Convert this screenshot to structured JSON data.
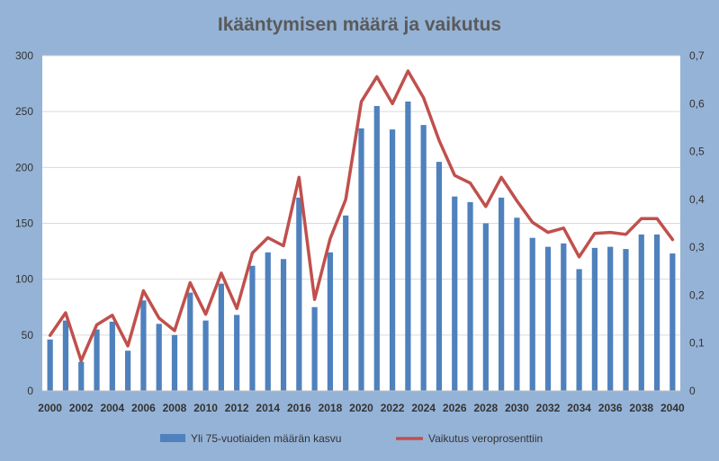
{
  "chart_data": {
    "type": "bar",
    "title": "Ikääntymisen määrä ja vaikutus",
    "xlabel": "",
    "ylabel": "",
    "x": [
      2000,
      2001,
      2002,
      2003,
      2004,
      2005,
      2006,
      2007,
      2008,
      2009,
      2010,
      2011,
      2012,
      2013,
      2014,
      2015,
      2016,
      2017,
      2018,
      2019,
      2020,
      2021,
      2022,
      2023,
      2024,
      2025,
      2026,
      2027,
      2028,
      2029,
      2030,
      2031,
      2032,
      2033,
      2034,
      2035,
      2036,
      2037,
      2038,
      2039,
      2040
    ],
    "x_tick_labels": [
      "2000",
      "2002",
      "2004",
      "2006",
      "2008",
      "2010",
      "2012",
      "2014",
      "2016",
      "2018",
      "2020",
      "2022",
      "2024",
      "2026",
      "2028",
      "2030",
      "2032",
      "2034",
      "2036",
      "2038",
      "2040"
    ],
    "ylim_left": [
      0,
      300
    ],
    "left_ticks": [
      "0",
      "50",
      "100",
      "150",
      "200",
      "250",
      "300"
    ],
    "ylim_right": [
      0,
      0.7
    ],
    "right_ticks": [
      "0",
      "0,1",
      "0,2",
      "0,3",
      "0,4",
      "0,5",
      "0,6",
      "0,7"
    ],
    "grid": true,
    "legend_position": "bottom",
    "series": [
      {
        "name": "Yli 75-vuotiaiden määrän kasvu",
        "kind": "bar",
        "axis": "left",
        "color": "#4F81BD",
        "values": [
          46,
          63,
          26,
          55,
          62,
          36,
          81,
          60,
          50,
          88,
          63,
          96,
          68,
          112,
          124,
          118,
          173,
          75,
          124,
          157,
          235,
          255,
          234,
          259,
          238,
          205,
          174,
          169,
          150,
          173,
          155,
          137,
          129,
          132,
          109,
          128,
          129,
          127,
          140,
          140,
          123
        ]
      },
      {
        "name": "Vaikutus veroprosenttiin",
        "kind": "line",
        "axis": "right",
        "color": "#C0504D",
        "values": [
          0.116,
          0.163,
          0.063,
          0.138,
          0.158,
          0.094,
          0.209,
          0.152,
          0.126,
          0.226,
          0.16,
          0.246,
          0.172,
          0.288,
          0.32,
          0.303,
          0.446,
          0.191,
          0.318,
          0.4,
          0.604,
          0.656,
          0.6,
          0.668,
          0.612,
          0.523,
          0.45,
          0.434,
          0.385,
          0.446,
          0.397,
          0.352,
          0.331,
          0.34,
          0.28,
          0.329,
          0.331,
          0.327,
          0.36,
          0.36,
          0.316
        ]
      }
    ]
  }
}
